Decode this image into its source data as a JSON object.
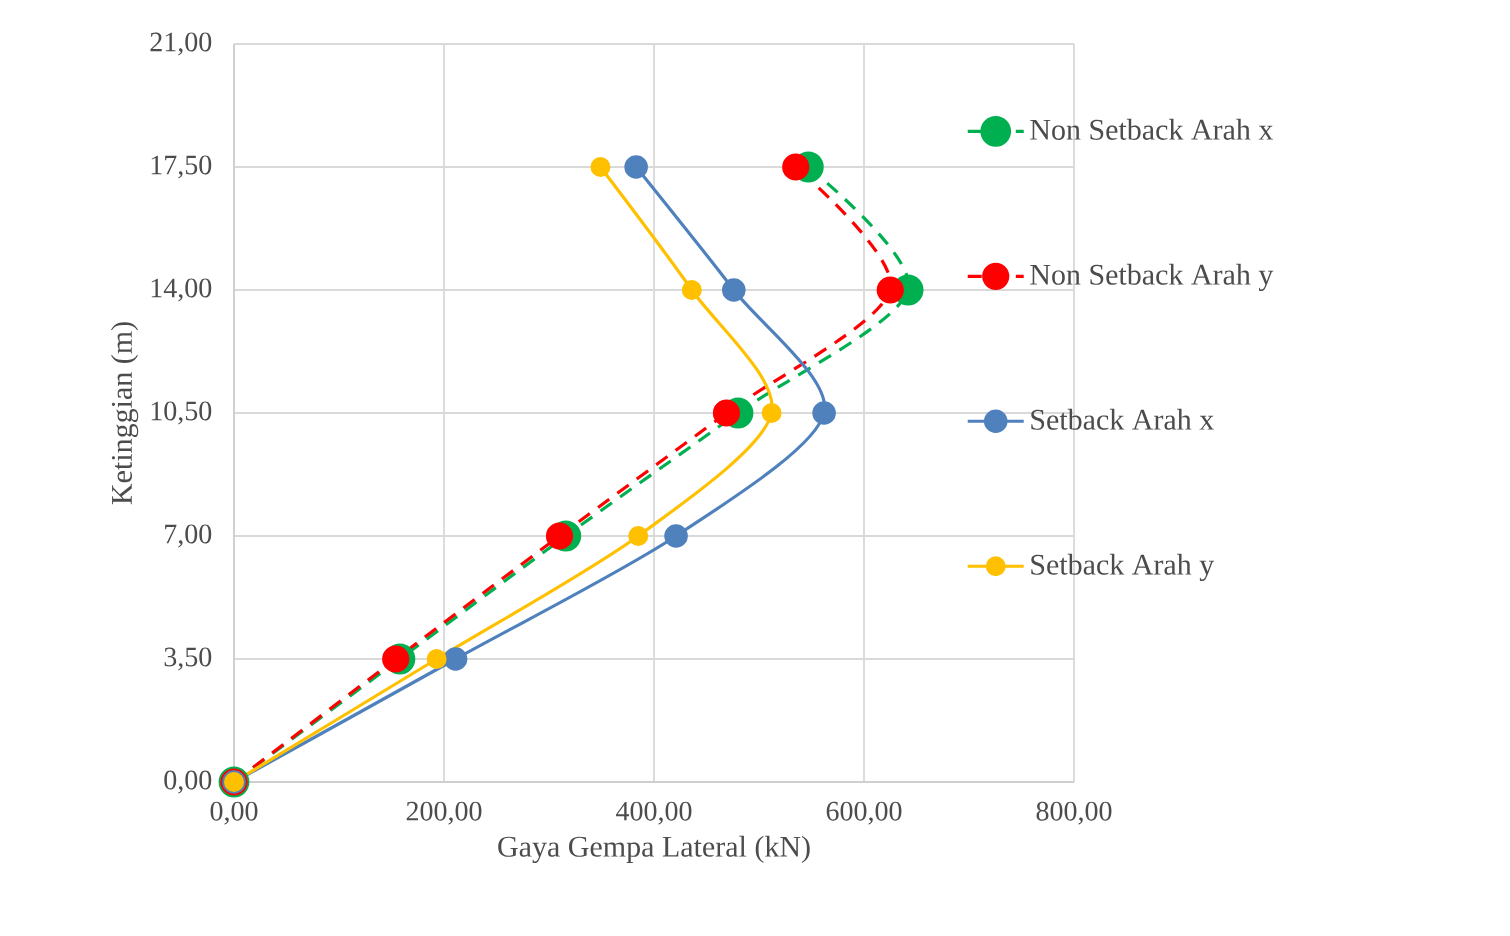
{
  "chart_data": {
    "type": "line",
    "xlabel": "Gaya Gempa Lateral (kN)",
    "ylabel": "Ketinggian (m)",
    "xlim": [
      0,
      800
    ],
    "ylim": [
      0,
      21
    ],
    "xticks": [
      {
        "value": 0,
        "label": "0,00"
      },
      {
        "value": 200,
        "label": "200,00"
      },
      {
        "value": 400,
        "label": "400,00"
      },
      {
        "value": 600,
        "label": "600,00"
      },
      {
        "value": 800,
        "label": "800,00"
      }
    ],
    "yticks": [
      {
        "value": 0,
        "label": "0,00"
      },
      {
        "value": 3.5,
        "label": "3,50"
      },
      {
        "value": 7,
        "label": "7,00"
      },
      {
        "value": 10.5,
        "label": "10,50"
      },
      {
        "value": 14,
        "label": "14,00"
      },
      {
        "value": 17.5,
        "label": "17,50"
      },
      {
        "value": 21,
        "label": "21,00"
      }
    ],
    "grid": true,
    "legend": "right",
    "marker": "circle",
    "series": [
      {
        "name": "Non Setback Arah x",
        "color": "#00b050",
        "line_style": "dashed",
        "x": [
          0,
          158,
          316,
          480,
          642,
          547
        ],
        "values": [
          0,
          3.5,
          7,
          10.5,
          14,
          17.5
        ]
      },
      {
        "name": "Non Setback Arah y",
        "color": "#ff0000",
        "line_style": "dashed",
        "x": [
          0,
          154,
          310,
          469,
          625,
          535
        ],
        "values": [
          0,
          3.5,
          7,
          10.5,
          14,
          17.5
        ]
      },
      {
        "name": "Setback Arah x",
        "color": "#4f81bd",
        "line_style": "solid",
        "x": [
          0,
          211,
          421,
          562,
          476,
          383
        ],
        "values": [
          0,
          3.5,
          7,
          10.5,
          14,
          17.5
        ]
      },
      {
        "name": "Setback Arah y",
        "color": "#ffc000",
        "line_style": "solid",
        "x": [
          0,
          193,
          385,
          512,
          436,
          349
        ],
        "values": [
          0,
          3.5,
          7,
          10.5,
          14,
          17.5
        ]
      }
    ]
  }
}
